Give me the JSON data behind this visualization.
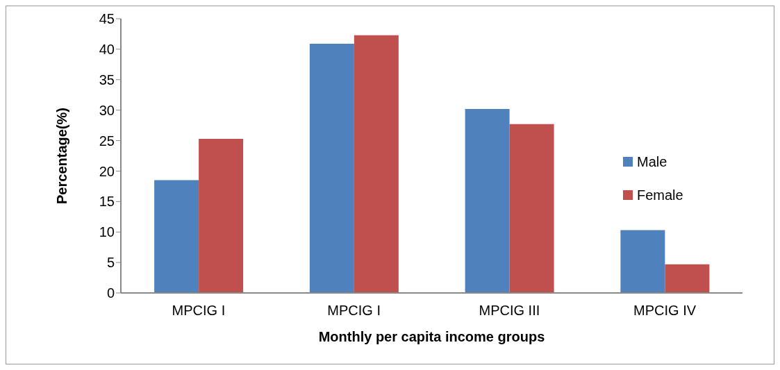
{
  "chart_data": {
    "type": "bar",
    "xlabel": "Monthly per capita income groups",
    "ylabel": "Percentage(%)",
    "categories": [
      "MPCIG I",
      "MPCIG I",
      "MPCIG III",
      "MPCIG  IV"
    ],
    "series": [
      {
        "name": "Male",
        "color": "#4f81bd",
        "values": [
          18.5,
          40.9,
          30.2,
          10.3
        ]
      },
      {
        "name": "Female",
        "color": "#c0504d",
        "values": [
          25.3,
          42.3,
          27.7,
          4.7
        ]
      }
    ],
    "ylim": [
      0,
      45
    ],
    "yticks": [
      0,
      5,
      10,
      15,
      20,
      25,
      30,
      35,
      40,
      45
    ],
    "grid": false,
    "legend": "right"
  }
}
